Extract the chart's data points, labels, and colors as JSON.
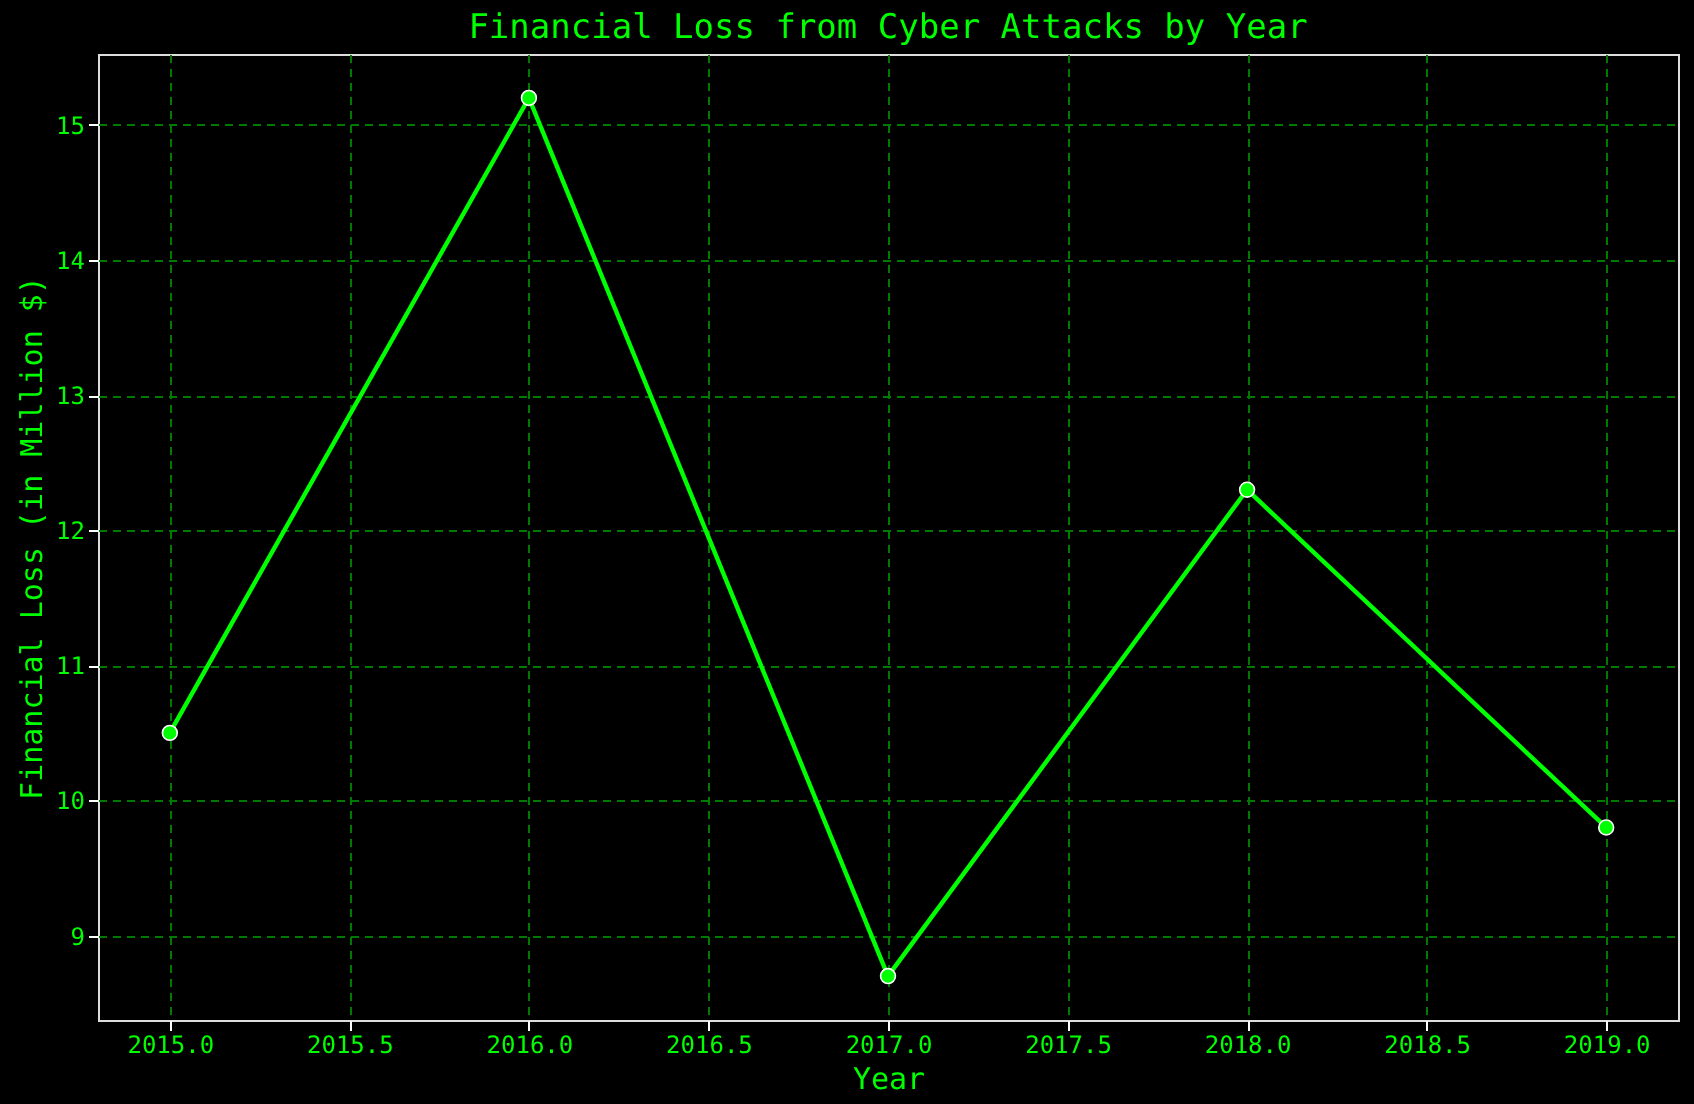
{
  "chart_data": {
    "type": "line",
    "title": "Financial Loss from Cyber Attacks by Year",
    "xlabel": "Year",
    "ylabel": "Financial Loss (in Million $)",
    "x": [
      2015,
      2016,
      2017,
      2018,
      2019
    ],
    "series": [
      {
        "color": "#00ff00",
        "values": [
          10.5,
          15.2,
          8.7,
          12.3,
          9.8
        ]
      }
    ],
    "xlim": [
      2014.8,
      2019.2
    ],
    "ylim": [
      8.375,
      15.525
    ],
    "xticks": [
      {
        "value": 2015,
        "label": "2015.0"
      },
      {
        "value": 2015.5,
        "label": "2015.5"
      },
      {
        "value": 2016,
        "label": "2016.0"
      },
      {
        "value": 2016.5,
        "label": "2016.5"
      },
      {
        "value": 2017,
        "label": "2017.0"
      },
      {
        "value": 2017.5,
        "label": "2017.5"
      },
      {
        "value": 2018,
        "label": "2018.0"
      },
      {
        "value": 2018.5,
        "label": "2018.5"
      },
      {
        "value": 2019,
        "label": "2019.0"
      }
    ],
    "yticks": [
      9,
      10,
      11,
      12,
      13,
      14,
      15
    ],
    "grid": true,
    "marker": "circle",
    "line_style": "solid"
  }
}
